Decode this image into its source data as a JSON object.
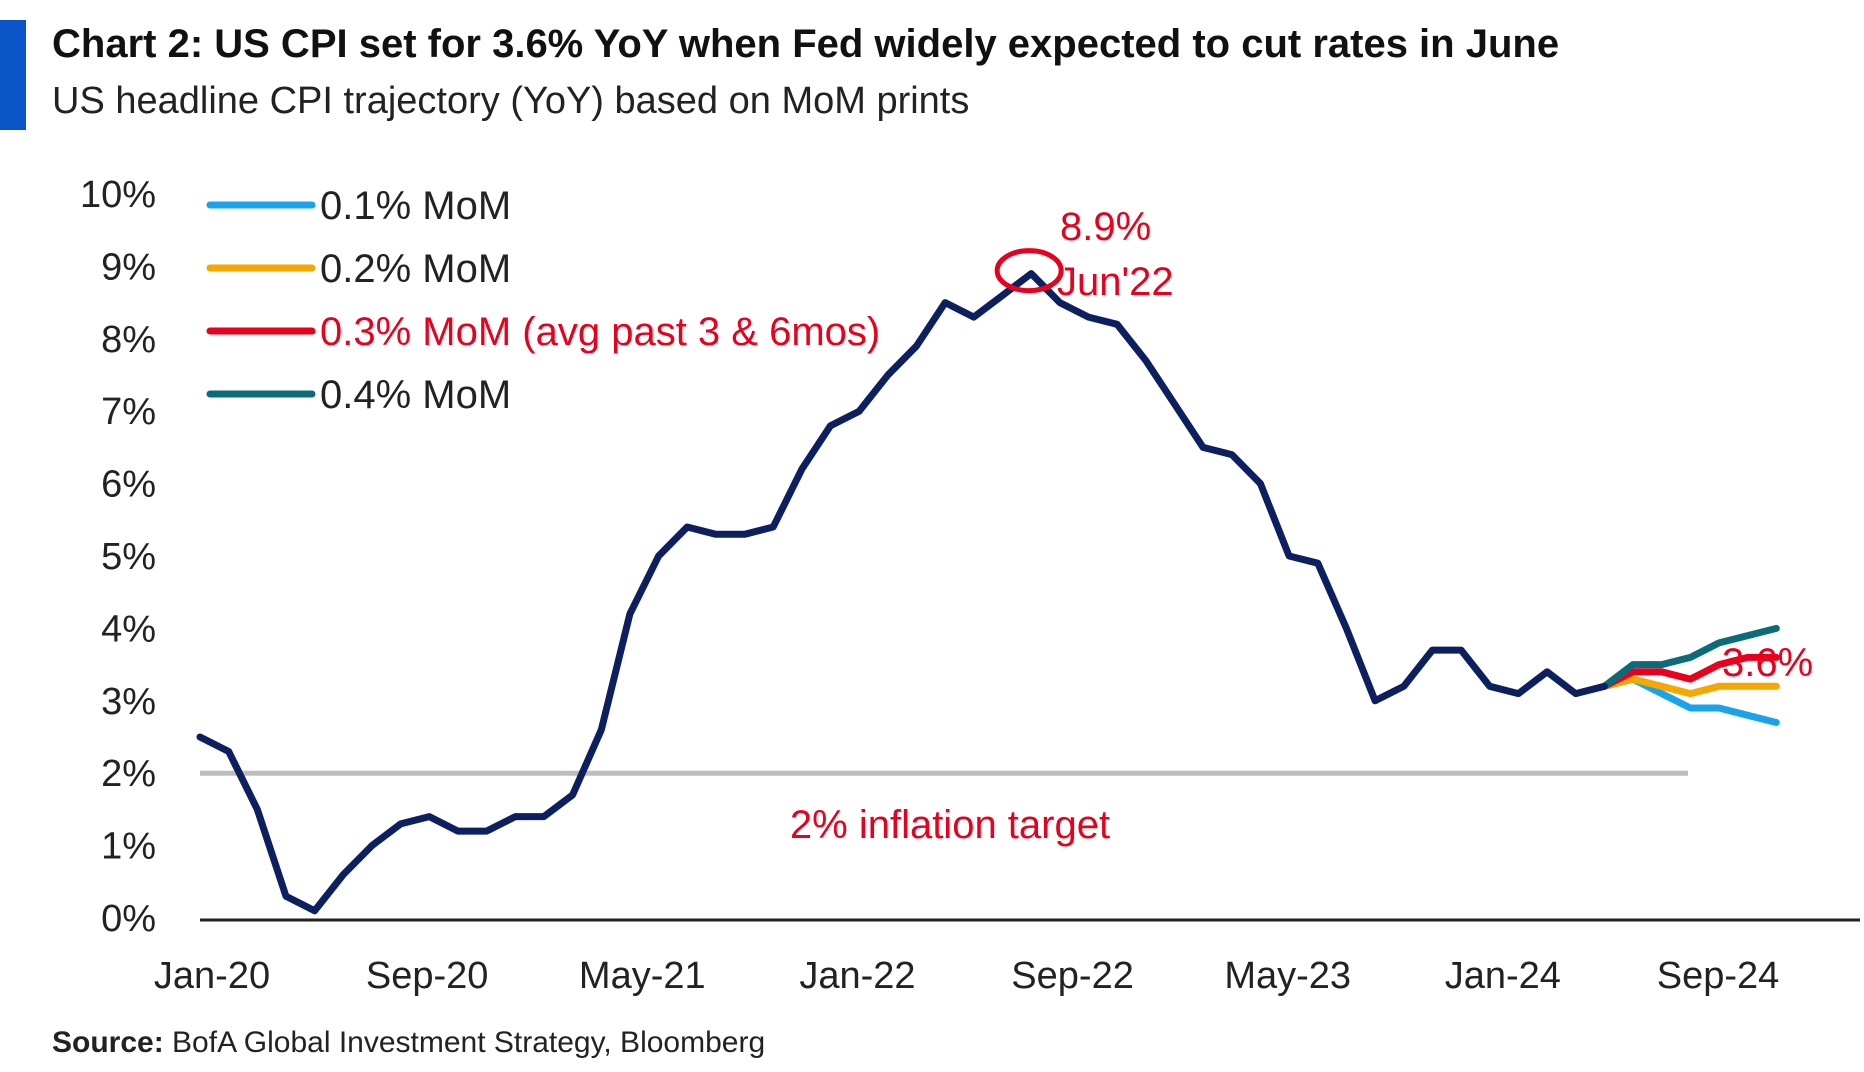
{
  "header": {
    "title": "Chart 2: US CPI set for 3.6% YoY when Fed widely expected to cut rates in June",
    "subtitle": "US headline CPI trajectory (YoY) based on MoM prints"
  },
  "footer": {
    "source_label": "Source:",
    "source_text": "BofA Global Investment Strategy, Bloomberg"
  },
  "chart_data": {
    "type": "line",
    "title": "Chart 2: US CPI set for 3.6% YoY when Fed widely expected to cut rates in June",
    "subtitle": "US headline CPI trajectory (YoY) based on MoM prints",
    "xlabel": "",
    "ylabel": "",
    "x_ticks": [
      "Jan-20",
      "Sep-20",
      "May-21",
      "Jan-22",
      "Sep-22",
      "May-23",
      "Jan-24",
      "Sep-24"
    ],
    "y_ticks": [
      "0%",
      "1%",
      "2%",
      "3%",
      "4%",
      "5%",
      "6%",
      "7%",
      "8%",
      "9%",
      "10%"
    ],
    "ylim": [
      0,
      10
    ],
    "xlim": [
      "2020-01",
      "2024-09"
    ],
    "grid": false,
    "legend_position": "top-left",
    "colors": {
      "history": "#0c1f5f",
      "mom_01": "#1aa3e8",
      "mom_02": "#f5a800",
      "mom_03": "#e8001c",
      "mom_04": "#0c6b78",
      "target": "#bdbdbd",
      "annotation": "#e8001c"
    },
    "history": {
      "name": "US headline CPI YoY",
      "x": [
        "2020-01",
        "2020-02",
        "2020-03",
        "2020-04",
        "2020-05",
        "2020-06",
        "2020-07",
        "2020-08",
        "2020-09",
        "2020-10",
        "2020-11",
        "2020-12",
        "2021-01",
        "2021-02",
        "2021-03",
        "2021-04",
        "2021-05",
        "2021-06",
        "2021-07",
        "2021-08",
        "2021-09",
        "2021-10",
        "2021-11",
        "2021-12",
        "2022-01",
        "2022-02",
        "2022-03",
        "2022-04",
        "2022-05",
        "2022-06",
        "2022-07",
        "2022-08",
        "2022-09",
        "2022-10",
        "2022-11",
        "2022-12",
        "2023-01",
        "2023-02",
        "2023-03",
        "2023-04",
        "2023-05",
        "2023-06",
        "2023-07",
        "2023-08",
        "2023-09",
        "2023-10",
        "2023-11",
        "2023-12",
        "2024-01",
        "2024-02"
      ],
      "values": [
        2.5,
        2.3,
        1.5,
        0.3,
        0.1,
        0.6,
        1.0,
        1.3,
        1.4,
        1.2,
        1.2,
        1.4,
        1.4,
        1.7,
        2.6,
        4.2,
        5.0,
        5.4,
        5.3,
        5.3,
        5.4,
        6.2,
        6.8,
        7.0,
        7.5,
        7.9,
        8.5,
        8.3,
        8.6,
        8.9,
        8.5,
        8.3,
        8.2,
        7.7,
        7.1,
        6.5,
        6.4,
        6.0,
        5.0,
        4.9,
        4.0,
        3.0,
        3.2,
        3.7,
        3.7,
        3.2,
        3.1,
        3.4,
        3.1,
        3.2
      ]
    },
    "scenarios": {
      "x": [
        "2024-02",
        "2024-03",
        "2024-04",
        "2024-05",
        "2024-06",
        "2024-07",
        "2024-08"
      ],
      "series": [
        {
          "name": "0.1% MoM",
          "color_key": "mom_01",
          "values": [
            3.2,
            3.3,
            3.1,
            2.9,
            2.9,
            2.8,
            2.7
          ]
        },
        {
          "name": "0.2% MoM",
          "color_key": "mom_02",
          "values": [
            3.2,
            3.3,
            3.2,
            3.1,
            3.2,
            3.2,
            3.2
          ]
        },
        {
          "name": "0.3% MoM (avg past 3 & 6mos)",
          "color_key": "mom_03",
          "values": [
            3.2,
            3.4,
            3.4,
            3.3,
            3.5,
            3.6,
            3.6
          ]
        },
        {
          "name": "0.4% MoM",
          "color_key": "mom_04",
          "values": [
            3.2,
            3.5,
            3.5,
            3.6,
            3.8,
            3.9,
            4.0
          ]
        }
      ]
    },
    "reference_line": {
      "label": "2% inflation target",
      "value": 2.0
    },
    "annotations": {
      "peak": {
        "value_label": "8.9%",
        "date_label": "Jun'22",
        "x": "2022-06",
        "y": 8.9
      },
      "end": {
        "label": "3.6%",
        "x": "2024-08",
        "y": 3.6
      }
    }
  }
}
